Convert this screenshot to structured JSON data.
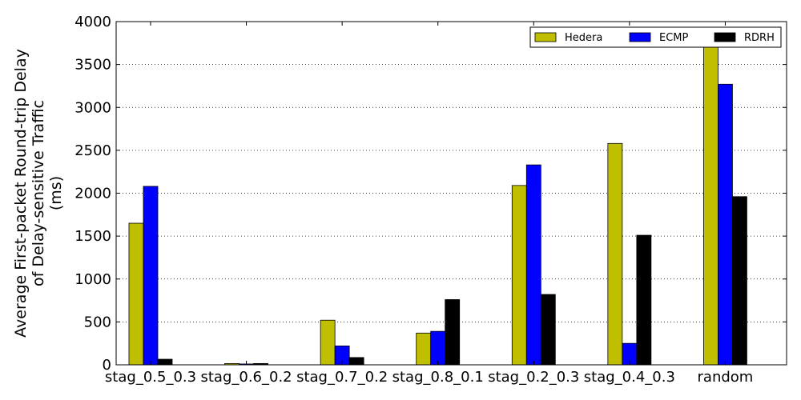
{
  "chart_data": {
    "type": "bar",
    "title": "",
    "xlabel": "",
    "ylabel_lines": [
      "Average First-packet Round-trip Delay",
      "of Delay-sensitive Traffic",
      "(ms)"
    ],
    "categories": [
      "stag_0.5_0.3",
      "stag_0.6_0.2",
      "stag_0.7_0.2",
      "stag_0.8_0.1",
      "stag_0.2_0.3",
      "stag_0.4_0.3",
      "random"
    ],
    "series": [
      {
        "name": "Hedera",
        "color": "#bfbf00",
        "values": [
          1650,
          15,
          520,
          370,
          2090,
          2580,
          3710
        ]
      },
      {
        "name": "ECMP",
        "color": "#0000ff",
        "values": [
          2080,
          10,
          220,
          390,
          2330,
          250,
          3270
        ]
      },
      {
        "name": "RDRH",
        "color": "#000000",
        "values": [
          65,
          15,
          85,
          760,
          820,
          1510,
          1960
        ]
      }
    ],
    "ylim": [
      0,
      4000
    ],
    "yticks": [
      0,
      500,
      1000,
      1500,
      2000,
      2500,
      3000,
      3500,
      4000
    ],
    "grid": "horizontal dotted",
    "legend_position": "top-right"
  }
}
